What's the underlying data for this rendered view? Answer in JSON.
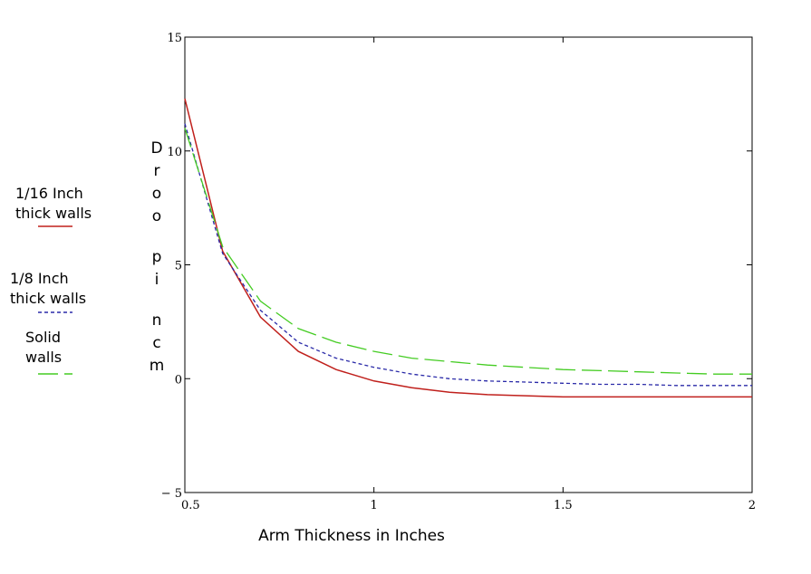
{
  "chart_data": {
    "type": "line",
    "xlabel": "Arm Thickness in Inches",
    "ylabel": "Droop in cm",
    "xlim": [
      0.5,
      2
    ],
    "ylim": [
      -5,
      15
    ],
    "x_ticks": [
      "0.5",
      "1",
      "1.5",
      "2"
    ],
    "y_ticks": [
      "15",
      "10",
      "5",
      "0",
      "-5"
    ],
    "grid": false,
    "legend_position": "left",
    "series": [
      {
        "name": "1/16 Inch thick walls",
        "legend_lines": [
          "1/16 Inch",
          "thick walls"
        ],
        "color": "#c0201c",
        "style": "solid",
        "x": [
          0.5,
          0.6,
          0.7,
          0.8,
          0.9,
          1.0,
          1.1,
          1.2,
          1.3,
          1.4,
          1.5,
          1.6,
          1.7,
          1.8,
          1.9,
          2.0
        ],
        "y": [
          12.3,
          5.6,
          2.7,
          1.2,
          0.4,
          -0.1,
          -0.4,
          -0.6,
          -0.7,
          -0.75,
          -0.8,
          -0.8,
          -0.8,
          -0.8,
          -0.8,
          -0.8
        ]
      },
      {
        "name": "1/8 Inch thick walls",
        "legend_lines": [
          "1/8 Inch",
          "thick walls"
        ],
        "color": "#2a2aa8",
        "style": "dotted",
        "x": [
          0.5,
          0.6,
          0.7,
          0.8,
          0.9,
          1.0,
          1.1,
          1.2,
          1.3,
          1.4,
          1.5,
          1.6,
          1.7,
          1.8,
          1.9,
          2.0
        ],
        "y": [
          11.2,
          5.5,
          3.0,
          1.6,
          0.9,
          0.5,
          0.2,
          0.0,
          -0.1,
          -0.15,
          -0.2,
          -0.25,
          -0.25,
          -0.3,
          -0.3,
          -0.3
        ]
      },
      {
        "name": "Solid walls",
        "legend_lines": [
          "Solid",
          "walls"
        ],
        "color": "#44cc22",
        "style": "dashed",
        "x": [
          0.5,
          0.6,
          0.7,
          0.8,
          0.9,
          1.0,
          1.1,
          1.2,
          1.3,
          1.4,
          1.5,
          1.6,
          1.7,
          1.8,
          1.9,
          2.0
        ],
        "y": [
          11.0,
          5.8,
          3.4,
          2.2,
          1.6,
          1.2,
          0.9,
          0.75,
          0.6,
          0.5,
          0.4,
          0.35,
          0.3,
          0.25,
          0.2,
          0.2
        ]
      }
    ]
  }
}
